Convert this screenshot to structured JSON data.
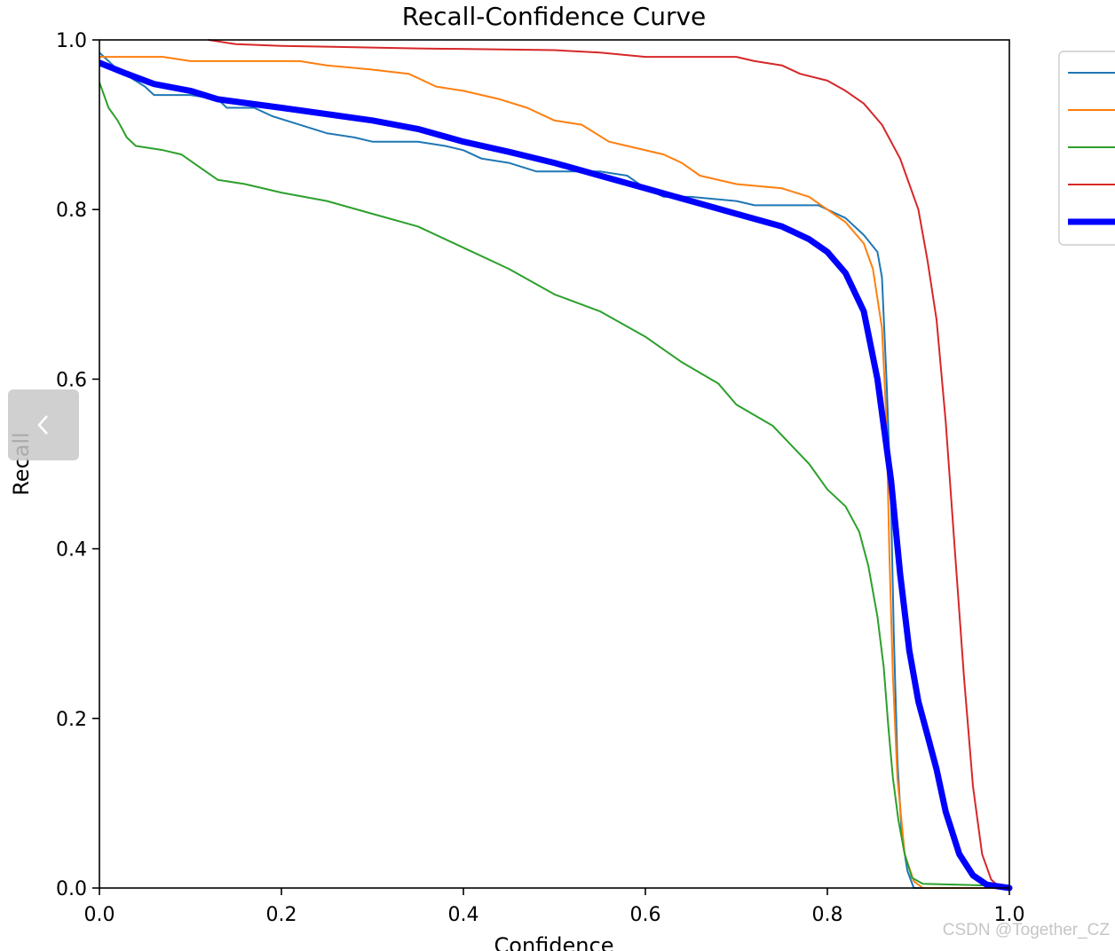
{
  "chart_data": {
    "type": "line",
    "title": "Recall-Confidence Curve",
    "xlabel": "Confidence",
    "ylabel": "Recall",
    "xlim": [
      0,
      1
    ],
    "ylim": [
      0,
      1
    ],
    "xticks": [
      "0.0",
      "0.2",
      "0.4",
      "0.6",
      "0.8",
      "1.0"
    ],
    "yticks": [
      "0.0",
      "0.2",
      "0.4",
      "0.6",
      "0.8",
      "1.0"
    ],
    "grid": false,
    "legend_position": "upper-right-outside (labels cropped)",
    "series": [
      {
        "color": "#1f77b4",
        "line_width": "thin",
        "points": [
          [
            0,
            0.985
          ],
          [
            0.02,
            0.965
          ],
          [
            0.05,
            0.945
          ],
          [
            0.06,
            0.935
          ],
          [
            0.1,
            0.935
          ],
          [
            0.13,
            0.93
          ],
          [
            0.14,
            0.92
          ],
          [
            0.17,
            0.92
          ],
          [
            0.19,
            0.91
          ],
          [
            0.22,
            0.9
          ],
          [
            0.25,
            0.89
          ],
          [
            0.28,
            0.885
          ],
          [
            0.3,
            0.88
          ],
          [
            0.35,
            0.88
          ],
          [
            0.38,
            0.875
          ],
          [
            0.4,
            0.87
          ],
          [
            0.42,
            0.86
          ],
          [
            0.45,
            0.855
          ],
          [
            0.48,
            0.845
          ],
          [
            0.55,
            0.845
          ],
          [
            0.58,
            0.84
          ],
          [
            0.6,
            0.825
          ],
          [
            0.62,
            0.815
          ],
          [
            0.65,
            0.815
          ],
          [
            0.7,
            0.81
          ],
          [
            0.72,
            0.805
          ],
          [
            0.79,
            0.805
          ],
          [
            0.82,
            0.79
          ],
          [
            0.84,
            0.77
          ],
          [
            0.855,
            0.75
          ],
          [
            0.86,
            0.72
          ],
          [
            0.865,
            0.6
          ],
          [
            0.87,
            0.45
          ],
          [
            0.873,
            0.3
          ],
          [
            0.877,
            0.15
          ],
          [
            0.882,
            0.06
          ],
          [
            0.888,
            0.02
          ],
          [
            0.895,
            0
          ],
          [
            1,
            0
          ]
        ]
      },
      {
        "color": "#ff7f0e",
        "line_width": "thin",
        "points": [
          [
            0,
            0.98
          ],
          [
            0.07,
            0.98
          ],
          [
            0.1,
            0.975
          ],
          [
            0.22,
            0.975
          ],
          [
            0.25,
            0.97
          ],
          [
            0.3,
            0.965
          ],
          [
            0.34,
            0.96
          ],
          [
            0.37,
            0.945
          ],
          [
            0.4,
            0.94
          ],
          [
            0.44,
            0.93
          ],
          [
            0.47,
            0.92
          ],
          [
            0.5,
            0.905
          ],
          [
            0.53,
            0.9
          ],
          [
            0.56,
            0.88
          ],
          [
            0.58,
            0.875
          ],
          [
            0.62,
            0.865
          ],
          [
            0.64,
            0.855
          ],
          [
            0.66,
            0.84
          ],
          [
            0.7,
            0.83
          ],
          [
            0.75,
            0.825
          ],
          [
            0.78,
            0.815
          ],
          [
            0.8,
            0.8
          ],
          [
            0.82,
            0.785
          ],
          [
            0.84,
            0.76
          ],
          [
            0.85,
            0.73
          ],
          [
            0.86,
            0.66
          ],
          [
            0.865,
            0.55
          ],
          [
            0.868,
            0.4
          ],
          [
            0.872,
            0.25
          ],
          [
            0.877,
            0.13
          ],
          [
            0.885,
            0.04
          ],
          [
            0.895,
            0.008
          ],
          [
            0.905,
            0
          ],
          [
            1,
            0
          ]
        ]
      },
      {
        "color": "#2ca02c",
        "line_width": "thin",
        "points": [
          [
            0,
            0.95
          ],
          [
            0.01,
            0.92
          ],
          [
            0.02,
            0.905
          ],
          [
            0.03,
            0.885
          ],
          [
            0.04,
            0.875
          ],
          [
            0.07,
            0.87
          ],
          [
            0.09,
            0.865
          ],
          [
            0.11,
            0.85
          ],
          [
            0.13,
            0.835
          ],
          [
            0.16,
            0.83
          ],
          [
            0.2,
            0.82
          ],
          [
            0.25,
            0.81
          ],
          [
            0.3,
            0.795
          ],
          [
            0.35,
            0.78
          ],
          [
            0.4,
            0.755
          ],
          [
            0.45,
            0.73
          ],
          [
            0.5,
            0.7
          ],
          [
            0.55,
            0.68
          ],
          [
            0.6,
            0.65
          ],
          [
            0.64,
            0.62
          ],
          [
            0.68,
            0.595
          ],
          [
            0.7,
            0.57
          ],
          [
            0.74,
            0.545
          ],
          [
            0.78,
            0.5
          ],
          [
            0.8,
            0.47
          ],
          [
            0.82,
            0.45
          ],
          [
            0.835,
            0.42
          ],
          [
            0.845,
            0.38
          ],
          [
            0.855,
            0.32
          ],
          [
            0.862,
            0.26
          ],
          [
            0.867,
            0.19
          ],
          [
            0.872,
            0.13
          ],
          [
            0.878,
            0.08
          ],
          [
            0.885,
            0.04
          ],
          [
            0.893,
            0.012
          ],
          [
            0.905,
            0.005
          ],
          [
            0.975,
            0.003
          ],
          [
            1,
            0
          ]
        ]
      },
      {
        "color": "#d62728",
        "line_width": "thin",
        "points": [
          [
            0.12,
            1.0
          ],
          [
            0.15,
            0.995
          ],
          [
            0.2,
            0.993
          ],
          [
            0.35,
            0.99
          ],
          [
            0.5,
            0.988
          ],
          [
            0.55,
            0.985
          ],
          [
            0.6,
            0.98
          ],
          [
            0.7,
            0.98
          ],
          [
            0.72,
            0.975
          ],
          [
            0.75,
            0.97
          ],
          [
            0.77,
            0.96
          ],
          [
            0.8,
            0.952
          ],
          [
            0.82,
            0.94
          ],
          [
            0.84,
            0.925
          ],
          [
            0.86,
            0.9
          ],
          [
            0.88,
            0.86
          ],
          [
            0.9,
            0.8
          ],
          [
            0.91,
            0.74
          ],
          [
            0.92,
            0.67
          ],
          [
            0.93,
            0.55
          ],
          [
            0.94,
            0.4
          ],
          [
            0.95,
            0.25
          ],
          [
            0.96,
            0.12
          ],
          [
            0.97,
            0.04
          ],
          [
            0.98,
            0.01
          ],
          [
            0.99,
            0
          ],
          [
            1,
            0
          ]
        ]
      },
      {
        "color": "#0000ff",
        "line_width": "thick",
        "points": [
          [
            0,
            0.973
          ],
          [
            0.03,
            0.96
          ],
          [
            0.06,
            0.948
          ],
          [
            0.1,
            0.94
          ],
          [
            0.13,
            0.93
          ],
          [
            0.2,
            0.92
          ],
          [
            0.3,
            0.905
          ],
          [
            0.35,
            0.895
          ],
          [
            0.4,
            0.88
          ],
          [
            0.45,
            0.868
          ],
          [
            0.5,
            0.855
          ],
          [
            0.55,
            0.84
          ],
          [
            0.6,
            0.825
          ],
          [
            0.65,
            0.81
          ],
          [
            0.7,
            0.795
          ],
          [
            0.75,
            0.78
          ],
          [
            0.78,
            0.765
          ],
          [
            0.8,
            0.75
          ],
          [
            0.82,
            0.725
          ],
          [
            0.84,
            0.68
          ],
          [
            0.855,
            0.6
          ],
          [
            0.87,
            0.48
          ],
          [
            0.88,
            0.37
          ],
          [
            0.89,
            0.28
          ],
          [
            0.9,
            0.22
          ],
          [
            0.91,
            0.18
          ],
          [
            0.92,
            0.14
          ],
          [
            0.93,
            0.09
          ],
          [
            0.945,
            0.04
          ],
          [
            0.96,
            0.015
          ],
          [
            0.975,
            0.004
          ],
          [
            1,
            0
          ]
        ]
      }
    ]
  },
  "overlay": {
    "back_icon": "chevron-left-icon",
    "watermark": "CSDN @Together_CZ"
  }
}
